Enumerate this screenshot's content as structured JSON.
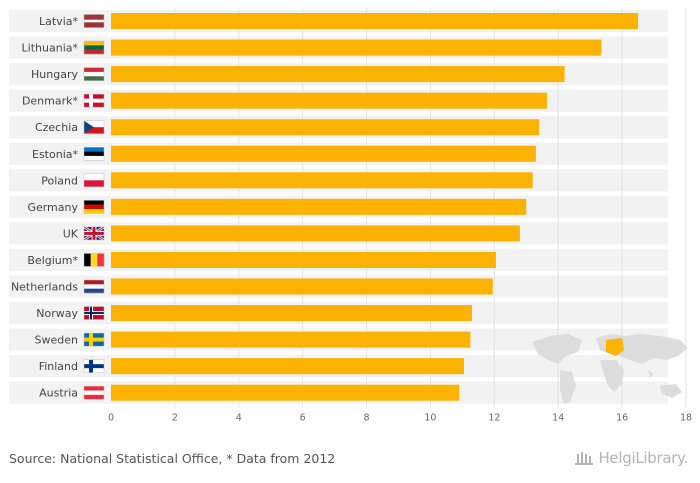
{
  "chart_data": {
    "type": "bar",
    "orientation": "horizontal",
    "categories": [
      "Latvia*",
      "Lithuania*",
      "Hungary",
      "Denmark*",
      "Czechia",
      "Estonia*",
      "Poland",
      "Germany",
      "UK",
      "Belgium*",
      "Netherlands",
      "Norway",
      "Sweden",
      "Finland",
      "Austria"
    ],
    "values": [
      16.5,
      15.35,
      14.2,
      13.65,
      13.4,
      13.3,
      13.2,
      13.0,
      12.8,
      12.05,
      11.95,
      11.3,
      11.25,
      11.05,
      10.9
    ],
    "xlim": [
      0,
      18
    ],
    "xticks": [
      0,
      2,
      4,
      6,
      8,
      10,
      12,
      14,
      16,
      18
    ],
    "bar_color": "#fbb200",
    "row_background": "#f2f2f2",
    "grid": true,
    "title": "",
    "xlabel": "",
    "ylabel": "",
    "flags": [
      "latvia-flag-icon",
      "lithuania-flag-icon",
      "hungary-flag-icon",
      "denmark-flag-icon",
      "czechia-flag-icon",
      "estonia-flag-icon",
      "poland-flag-icon",
      "germany-flag-icon",
      "uk-flag-icon",
      "belgium-flag-icon",
      "netherlands-flag-icon",
      "norway-flag-icon",
      "sweden-flag-icon",
      "finland-flag-icon",
      "austria-flag-icon"
    ]
  },
  "footer": {
    "source": "Source: National Statistical Office, * Data from 2012",
    "logo": "HelgiLibrary."
  }
}
